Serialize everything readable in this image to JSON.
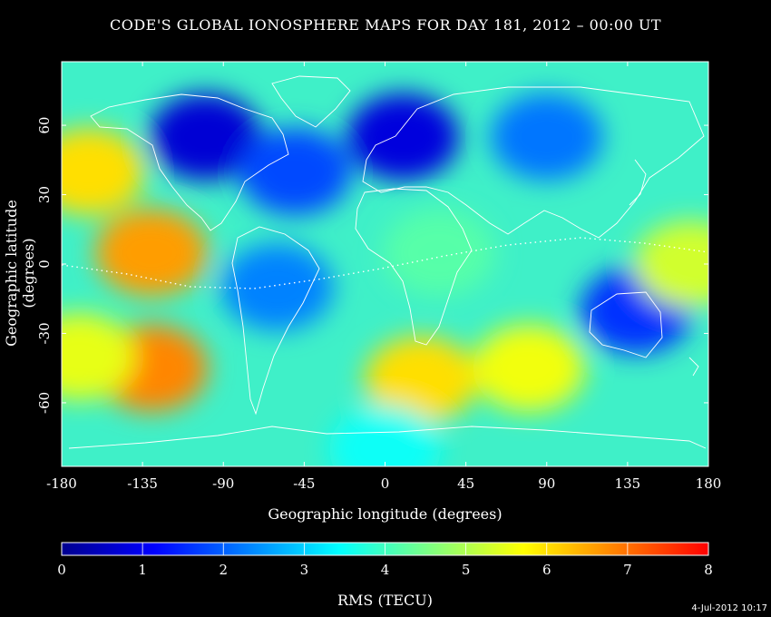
{
  "title": "CODE'S GLOBAL IONOSPHERE MAPS FOR DAY 181, 2012 – 00:00 UT",
  "x_axis": {
    "label": "Geographic longitude (degrees)",
    "range": [
      -180,
      180
    ],
    "ticks": [
      "-180",
      "-135",
      "-90",
      "-45",
      "0",
      "45",
      "90",
      "135",
      "180"
    ]
  },
  "y_axis": {
    "label": "Geographic latitude (degrees)",
    "range": [
      -87.5,
      87.5
    ],
    "ticks": [
      "-60",
      "-30",
      "0",
      "30",
      "60"
    ]
  },
  "colorbar": {
    "label": "RMS (TECU)",
    "range": [
      0,
      8
    ],
    "ticks": [
      "0",
      "1",
      "2",
      "3",
      "4",
      "5",
      "6",
      "7",
      "8"
    ],
    "colormap": [
      "#00008f",
      "#0000ff",
      "#0080ff",
      "#00ffff",
      "#80ff80",
      "#ffff00",
      "#ff8000",
      "#ff0000"
    ]
  },
  "timestamp": "4-Jul-2012 10:17",
  "map": {
    "coastline_color": "#ffffff",
    "magnetic_equator_style": "dotted",
    "rms_field": [
      {
        "lon": -165,
        "lat": 40,
        "value": 6.0
      },
      {
        "lon": -130,
        "lat": 5,
        "value": 6.6
      },
      {
        "lon": -130,
        "lat": -45,
        "value": 6.8
      },
      {
        "lon": -170,
        "lat": -40,
        "value": 5.5
      },
      {
        "lon": -100,
        "lat": 55,
        "value": 0.7
      },
      {
        "lon": -50,
        "lat": 40,
        "value": 1.8
      },
      {
        "lon": 10,
        "lat": 55,
        "value": 0.8
      },
      {
        "lon": 90,
        "lat": 55,
        "value": 2.2
      },
      {
        "lon": 20,
        "lat": -50,
        "value": 6.0
      },
      {
        "lon": 80,
        "lat": -45,
        "value": 5.6
      },
      {
        "lon": 140,
        "lat": -20,
        "value": 1.6
      },
      {
        "lon": 170,
        "lat": 0,
        "value": 5.3
      },
      {
        "lon": 30,
        "lat": 5,
        "value": 4.2
      },
      {
        "lon": -60,
        "lat": -10,
        "value": 2.3
      },
      {
        "lon": 0,
        "lat": -80,
        "value": 3.5
      }
    ]
  }
}
